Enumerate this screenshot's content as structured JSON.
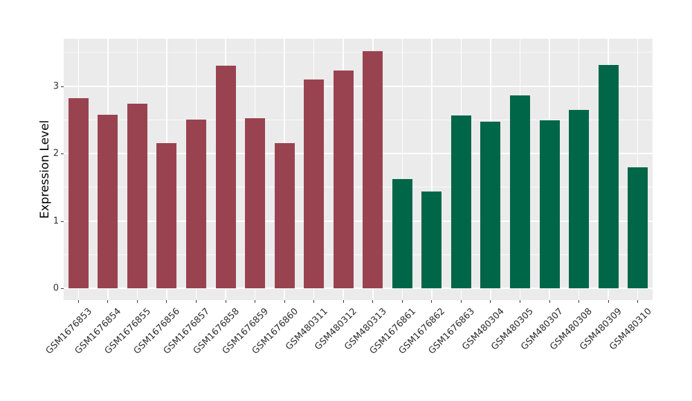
{
  "chart_data": {
    "type": "bar",
    "title": "",
    "xlabel": "",
    "ylabel": "Expression Level",
    "ylim": [
      0,
      3.7
    ],
    "yticks": [
      0,
      1,
      2,
      3
    ],
    "minor_gridlines": [
      0.5,
      1.5,
      2.5,
      3.5
    ],
    "grid": "on",
    "legend": "none",
    "panel_bg": "#EBEBEB",
    "gridline_color": "#FFFFFF",
    "categories": [
      "GSM1676853",
      "GSM1676854",
      "GSM1676855",
      "GSM1676856",
      "GSM1676857",
      "GSM1676858",
      "GSM1676859",
      "GSM1676860",
      "GSM480311",
      "GSM480312",
      "GSM480313",
      "GSM1676861",
      "GSM1676862",
      "GSM1676863",
      "GSM480304",
      "GSM480305",
      "GSM480307",
      "GSM480308",
      "GSM480309",
      "GSM480310"
    ],
    "values": [
      2.82,
      2.57,
      2.74,
      2.15,
      2.5,
      3.3,
      2.52,
      2.15,
      3.1,
      3.23,
      3.52,
      1.62,
      1.44,
      2.56,
      2.47,
      2.86,
      2.49,
      2.65,
      3.31,
      1.79
    ],
    "groups": [
      "group1",
      "group1",
      "group1",
      "group1",
      "group1",
      "group1",
      "group1",
      "group1",
      "group1",
      "group1",
      "group1",
      "group2",
      "group2",
      "group2",
      "group2",
      "group2",
      "group2",
      "group2",
      "group2",
      "group2"
    ],
    "group_colors": {
      "group1": "#9A4350",
      "group2": "#006648"
    }
  }
}
